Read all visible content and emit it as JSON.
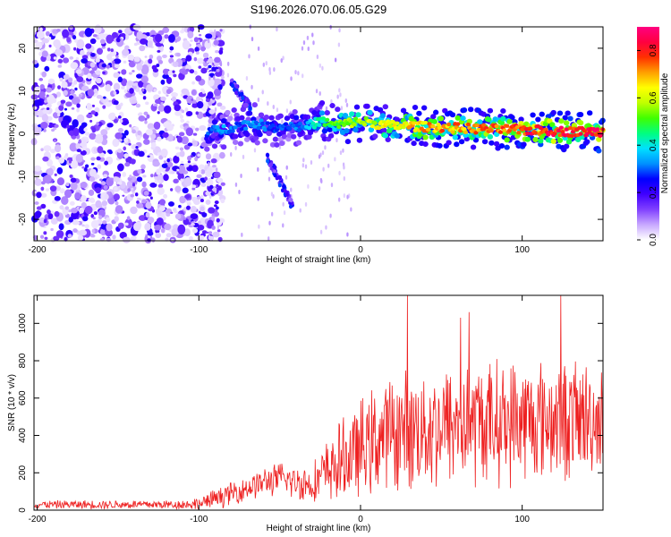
{
  "figure_title": "S196.2026.070.06.05.G29",
  "chart_data": [
    {
      "type": "heatmap",
      "title": "S196.2026.070.06.05.G29",
      "xlabel": "Height of straight line (km)",
      "ylabel": "Frequency (Hz)",
      "xlim": [
        -202,
        150
      ],
      "ylim": [
        -25,
        25
      ],
      "xticks": [
        -200,
        -100,
        0,
        100
      ],
      "yticks": [
        -20,
        -10,
        0,
        10,
        20
      ],
      "colorbar": {
        "label": "Normalized spectral amplitude",
        "range": [
          0,
          0.9
        ],
        "ticks": [
          0.0,
          0.2,
          0.4,
          0.6,
          0.8
        ],
        "colormap": [
          "#ffffff",
          "#c8a8ff",
          "#8040ff",
          "#4000ff",
          "#0000ff",
          "#0090ff",
          "#00e0ff",
          "#00ff80",
          "#40ff00",
          "#c0ff00",
          "#ffff00",
          "#ffa000",
          "#ff3000",
          "#ff0040",
          "#ff0080"
        ]
      },
      "ridge": {
        "x": [
          -95,
          -85,
          -75,
          -65,
          -55,
          -45,
          -35,
          -25,
          -15,
          0,
          15,
          30,
          50,
          70,
          90,
          110,
          130,
          150
        ],
        "frequency": [
          0.5,
          1.0,
          2.0,
          2.5,
          1.5,
          2.0,
          1.5,
          3.0,
          2.0,
          3.0,
          2.0,
          1.8,
          1.5,
          1.2,
          1.0,
          0.8,
          0.5,
          0.5
        ],
        "amplitude": [
          0.3,
          0.35,
          0.3,
          0.35,
          0.3,
          0.3,
          0.35,
          0.45,
          0.55,
          0.6,
          0.65,
          0.7,
          0.75,
          0.75,
          0.8,
          0.85,
          0.85,
          0.85
        ]
      },
      "noise_region": {
        "x_range": [
          -202,
          -85
        ],
        "frequency_range": [
          -25,
          25
        ]
      },
      "branches": [
        {
          "x": [
            -80,
            -74,
            -68
          ],
          "frequency": [
            12,
            9,
            6
          ]
        },
        {
          "x": [
            -58,
            -50,
            -42
          ],
          "frequency": [
            -5,
            -11,
            -17
          ]
        }
      ]
    },
    {
      "type": "line",
      "title": "",
      "xlabel": "Height of straight line (km)",
      "ylabel": "SNR (10 * v/v)",
      "xlim": [
        -202,
        150
      ],
      "ylim": [
        0,
        1150
      ],
      "xticks": [
        -200,
        -100,
        0,
        100
      ],
      "yticks": [
        0,
        200,
        400,
        600,
        800,
        1000
      ],
      "color": "#ee2020",
      "envelope": {
        "x": [
          -200,
          -110,
          -100,
          -90,
          -80,
          -70,
          -60,
          -50,
          -40,
          -30,
          -20,
          -10,
          0,
          10,
          20,
          40,
          60,
          80,
          100,
          120,
          140,
          150
        ],
        "baseline": [
          30,
          30,
          35,
          60,
          90,
          120,
          150,
          170,
          150,
          140,
          210,
          270,
          320,
          380,
          420,
          440,
          460,
          470,
          480,
          485,
          490,
          480
        ],
        "amplitude": [
          25,
          30,
          40,
          60,
          70,
          80,
          90,
          100,
          110,
          120,
          200,
          260,
          300,
          330,
          350,
          380,
          380,
          380,
          380,
          370,
          370,
          300
        ]
      },
      "peaks": [
        {
          "x": 29,
          "y": 1150
        },
        {
          "x": 124,
          "y": 1150
        },
        {
          "x": 67,
          "y": 1060
        },
        {
          "x": 62,
          "y": 1030
        }
      ]
    }
  ]
}
